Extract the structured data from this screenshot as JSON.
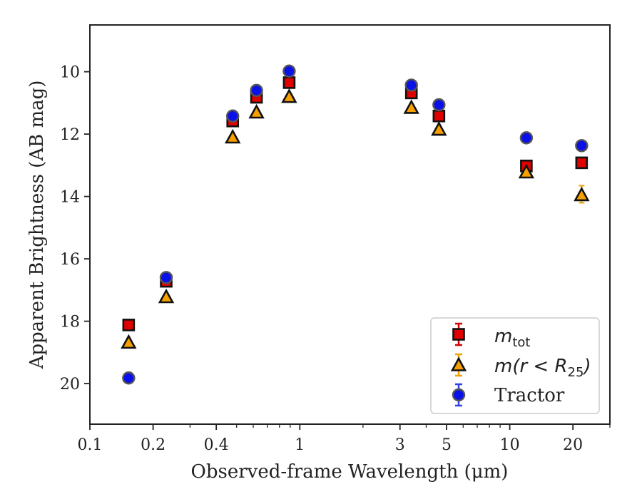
{
  "chart_data": {
    "type": "scatter",
    "xlabel": "Observed-frame Wavelength (μm)",
    "ylabel": "Apparent Brightness (AB mag)",
    "x_scale": "log",
    "xlim": [
      0.1,
      30
    ],
    "ylim": [
      21.3,
      8.5
    ],
    "y_inverted": true,
    "x_ticks": [
      {
        "value": 0.1,
        "label": "0.1"
      },
      {
        "value": 0.2,
        "label": "0.2"
      },
      {
        "value": 0.4,
        "label": "0.4"
      },
      {
        "value": 1,
        "label": "1"
      },
      {
        "value": 3,
        "label": "3"
      },
      {
        "value": 5,
        "label": "5"
      },
      {
        "value": 10,
        "label": "10"
      },
      {
        "value": 20,
        "label": "20"
      }
    ],
    "y_ticks": [
      {
        "value": 10,
        "label": "10"
      },
      {
        "value": 12,
        "label": "12"
      },
      {
        "value": 14,
        "label": "14"
      },
      {
        "value": 16,
        "label": "16"
      },
      {
        "value": 18,
        "label": "18"
      },
      {
        "value": 20,
        "label": "20"
      }
    ],
    "grid": false,
    "legend_position": "bottom-right",
    "series": [
      {
        "name": "m_tot",
        "legend_main": "m",
        "legend_sub": "tot",
        "marker": "square",
        "fill": "#e00000",
        "errcolor": "#d40000",
        "points": [
          {
            "x": 0.153,
            "y": 18.12
          },
          {
            "x": 0.231,
            "y": 16.72
          },
          {
            "x": 0.479,
            "y": 11.58
          },
          {
            "x": 0.622,
            "y": 10.82
          },
          {
            "x": 0.89,
            "y": 10.35
          },
          {
            "x": 3.4,
            "y": 10.68
          },
          {
            "x": 4.6,
            "y": 11.42
          },
          {
            "x": 12.0,
            "y": 13.02
          },
          {
            "x": 22.0,
            "y": 12.92
          }
        ]
      },
      {
        "name": "m(r<R25)",
        "legend_main": "m(r < R",
        "legend_sub": "25",
        "legend_close": ")",
        "marker": "triangle",
        "fill": "#f5a000",
        "errcolor": "#f0a000",
        "points": [
          {
            "x": 0.153,
            "y": 18.68
          },
          {
            "x": 0.231,
            "y": 17.22
          },
          {
            "x": 0.479,
            "y": 12.1
          },
          {
            "x": 0.622,
            "y": 11.3
          },
          {
            "x": 0.89,
            "y": 10.8
          },
          {
            "x": 3.4,
            "y": 11.15
          },
          {
            "x": 4.6,
            "y": 11.85
          },
          {
            "x": 12.0,
            "y": 13.22
          },
          {
            "x": 22.0,
            "y": 13.95
          }
        ]
      },
      {
        "name": "Tractor",
        "marker": "circle",
        "fill": "#0a10e8",
        "errcolor": "#3040f0",
        "points": [
          {
            "x": 0.153,
            "y": 19.82
          },
          {
            "x": 0.231,
            "y": 16.6
          },
          {
            "x": 0.479,
            "y": 11.42
          },
          {
            "x": 0.622,
            "y": 10.6
          },
          {
            "x": 0.89,
            "y": 9.98
          },
          {
            "x": 3.4,
            "y": 10.43
          },
          {
            "x": 4.6,
            "y": 11.06
          },
          {
            "x": 12.0,
            "y": 12.12
          },
          {
            "x": 22.0,
            "y": 12.37
          }
        ]
      }
    ]
  }
}
